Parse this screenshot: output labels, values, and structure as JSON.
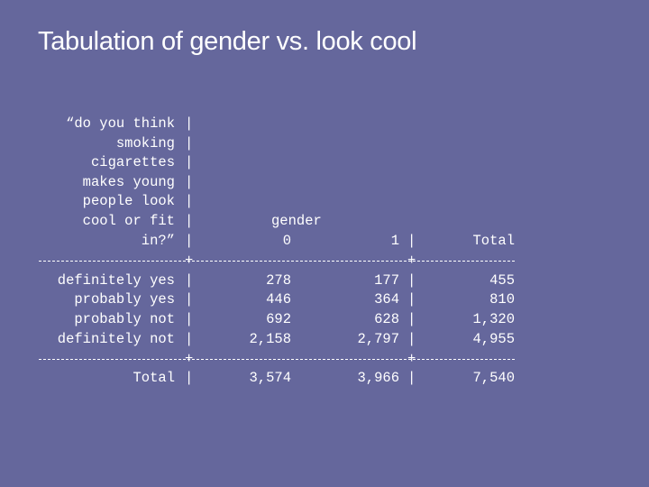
{
  "title": "Tabulation of gender vs. look cool",
  "row_variable_label": [
    "“do you think",
    "smoking",
    "cigarettes",
    "makes young",
    "people look",
    "cool or fit",
    "in?”"
  ],
  "column_variable_label": "gender",
  "column_headers": [
    "0",
    "1",
    "Total"
  ],
  "rows": [
    {
      "label": "definitely yes",
      "values": [
        "278",
        "177",
        "455"
      ]
    },
    {
      "label": "probably yes",
      "values": [
        "446",
        "364",
        "810"
      ]
    },
    {
      "label": "probably not",
      "values": [
        "692",
        "628",
        "1,320"
      ]
    },
    {
      "label": "definitely not",
      "values": [
        "2,158",
        "2,797",
        "4,955"
      ]
    }
  ],
  "total_row": {
    "label": "Total",
    "values": [
      "3,574",
      "3,966",
      "7,540"
    ]
  },
  "separator": "|"
}
